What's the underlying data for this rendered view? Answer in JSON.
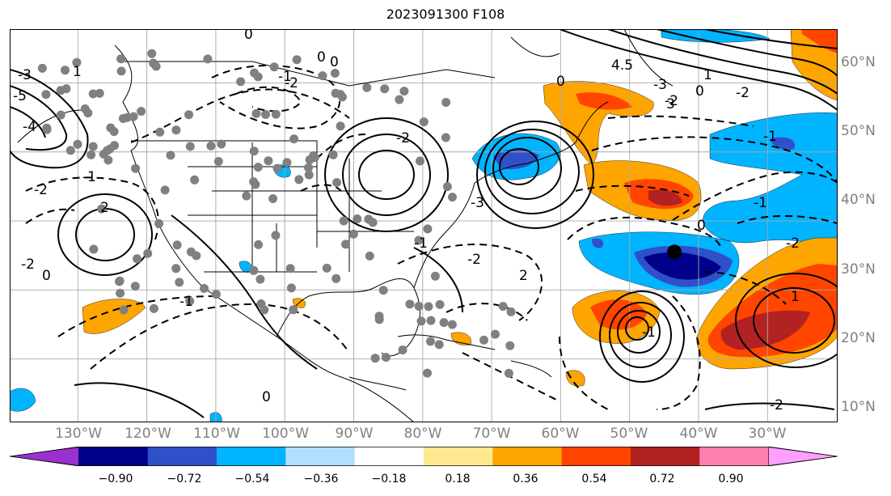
{
  "title": "2023091300 F108",
  "lat_labels": [
    "60°N",
    "50°N",
    "40°N",
    "30°N",
    "20°N",
    "10°N"
  ],
  "lon_labels": [
    "130°W",
    "120°W",
    "110°W",
    "100°W",
    "90°W",
    "80°W",
    "70°W",
    "60°W",
    "50°W",
    "40°W",
    "30°W"
  ],
  "colorbar": {
    "ticks": [
      "−0.90",
      "−0.72",
      "−0.54",
      "−0.36",
      "−0.18",
      "0.18",
      "0.36",
      "0.54",
      "0.72",
      "0.90"
    ],
    "colors": [
      "#9b30d0",
      "#00008b",
      "#3050c8",
      "#00b4ff",
      "#b0e0ff",
      "#ffffff",
      "#ffe890",
      "#ffa500",
      "#ff4500",
      "#b22222",
      "#ff80b0",
      "#ffa0ff"
    ]
  },
  "contour_labels": [
    "0",
    "0",
    "-1",
    "-2",
    "-3",
    "-5",
    "-4",
    "1",
    "-2",
    "-1",
    "0",
    "-2",
    "-1",
    "2",
    "-2",
    "0",
    "-1",
    "-2",
    "2",
    "-1",
    "-3",
    "4.5",
    "3",
    "1",
    "-3",
    "-2",
    "0",
    "-1",
    "-2",
    "1",
    "-2",
    "0",
    "0",
    "-1",
    "-2",
    "0"
  ],
  "marker": {
    "lon": -43.5,
    "lat": 35.5
  }
}
